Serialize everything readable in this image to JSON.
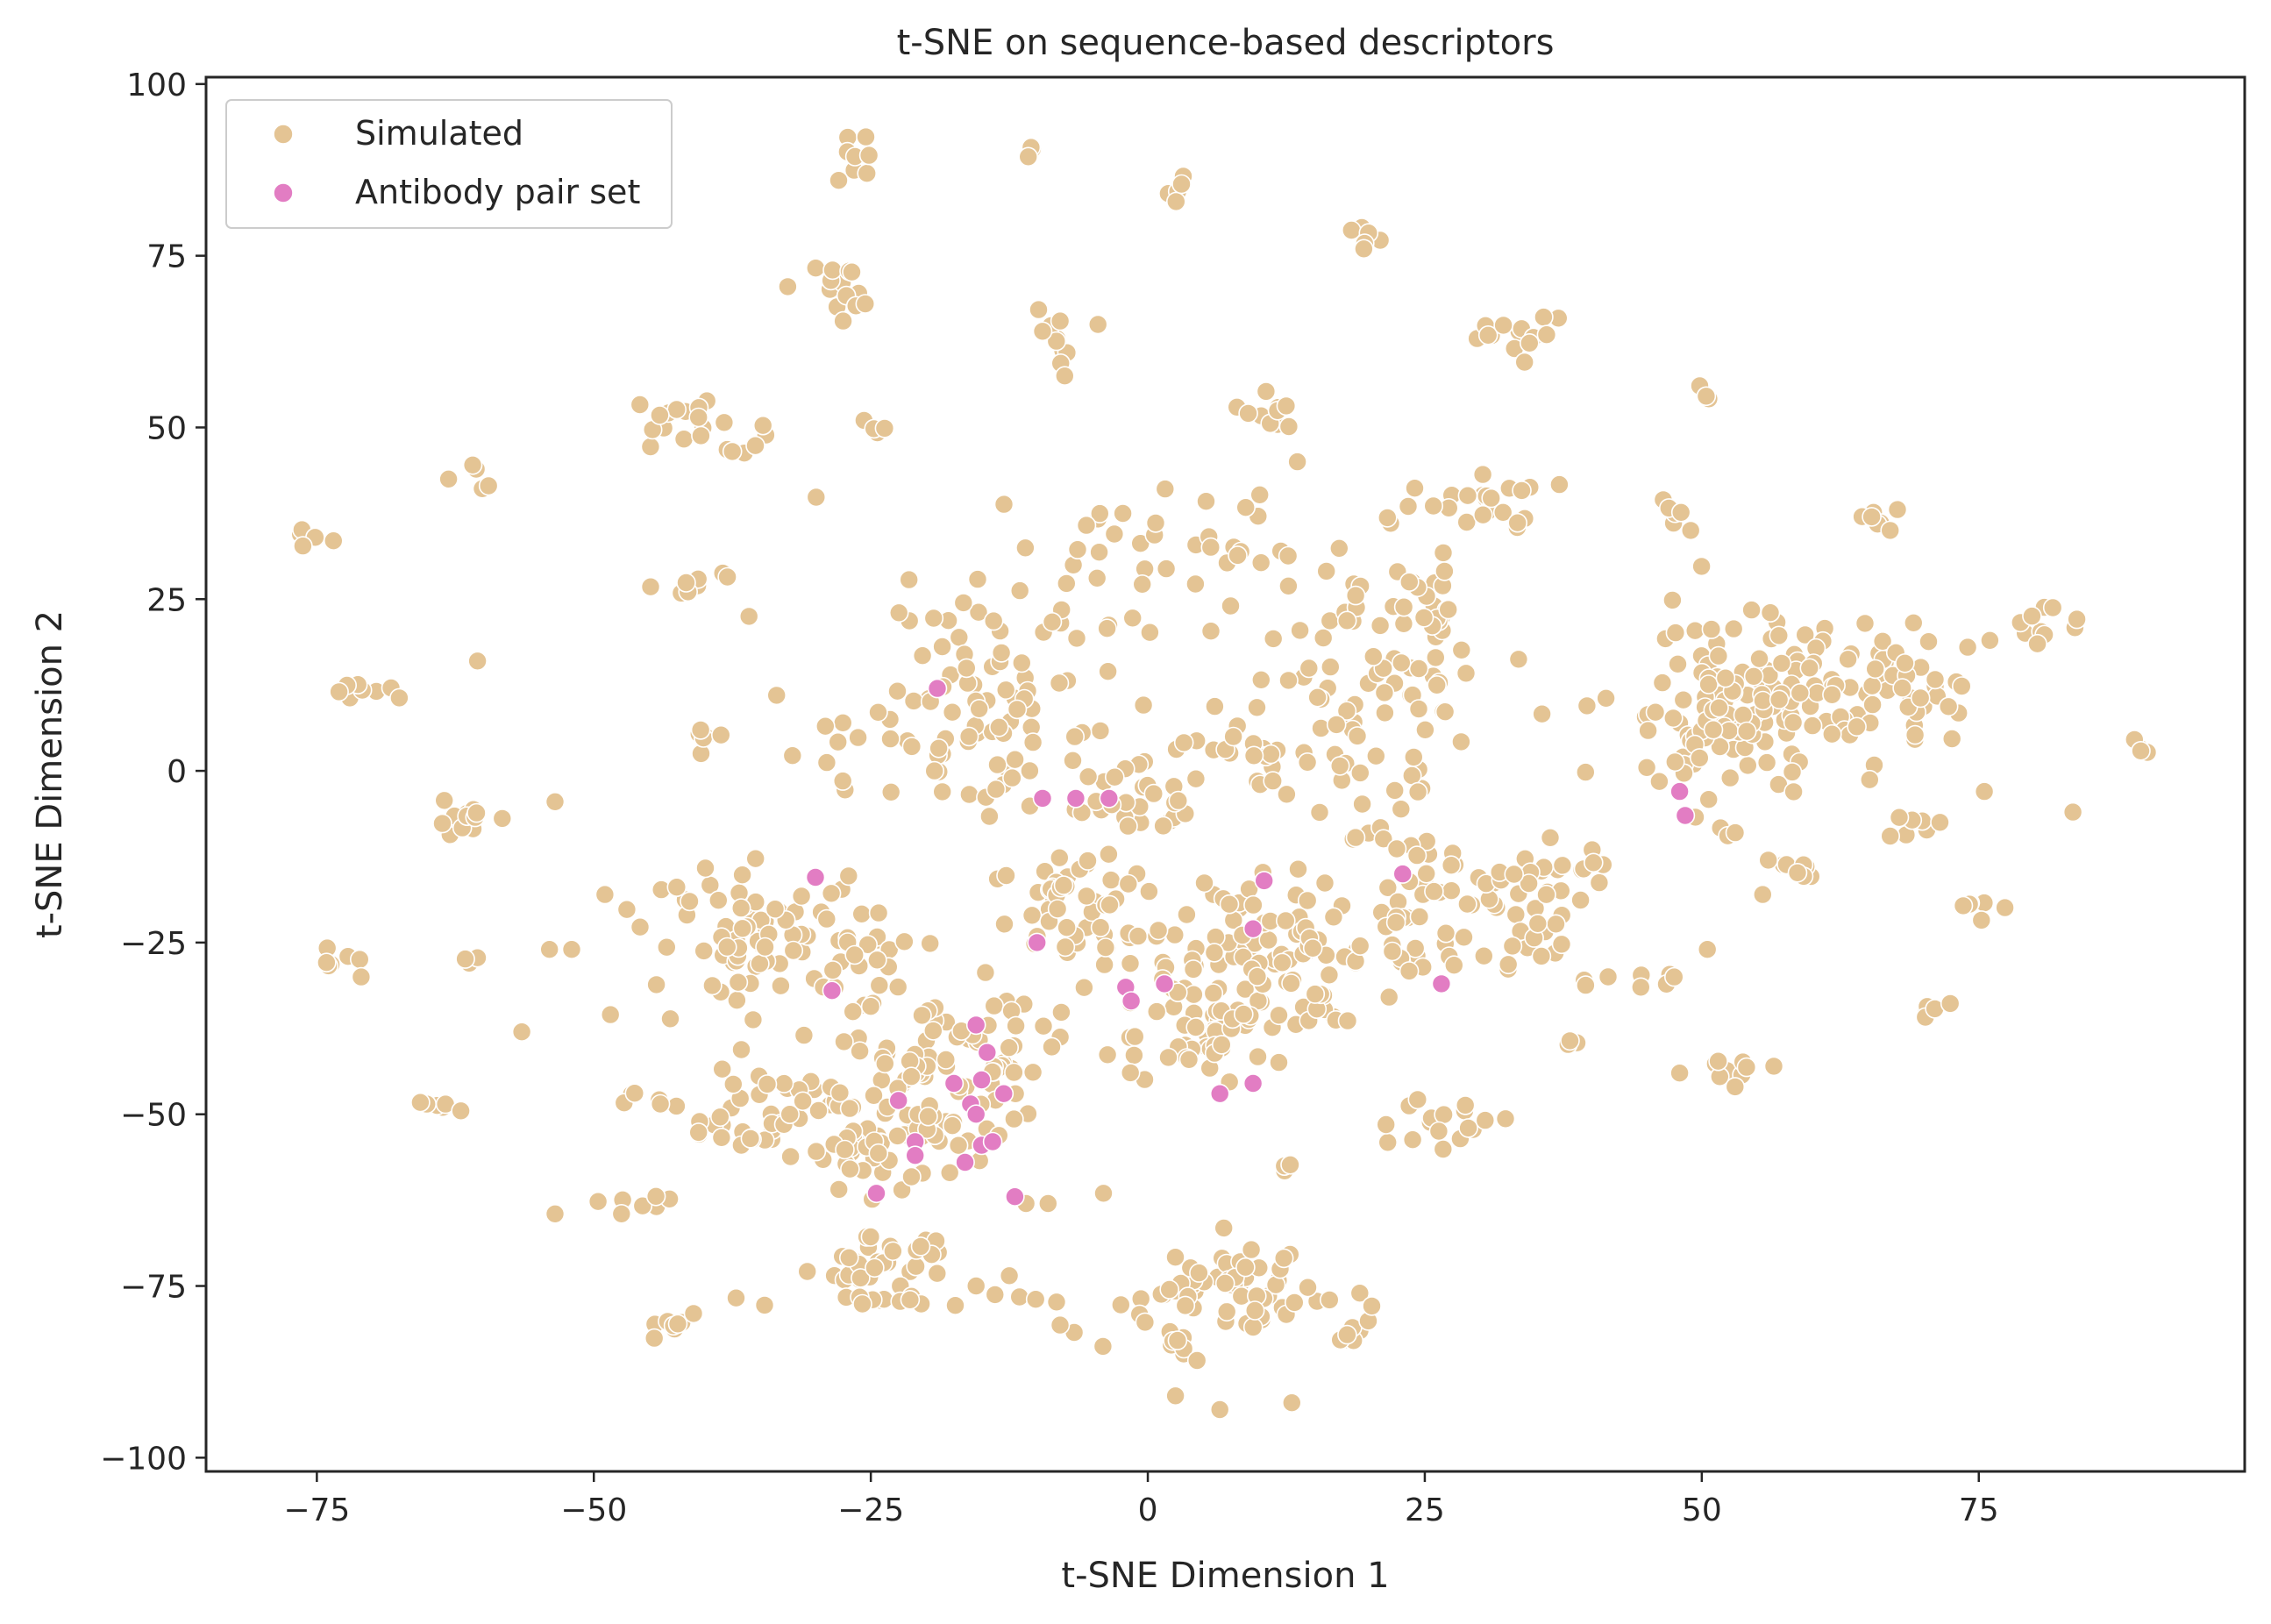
{
  "chart_data": {
    "type": "scatter",
    "title": "t-SNE on sequence-based descriptors",
    "xlabel": "t-SNE Dimension 1",
    "ylabel": "t-SNE Dimension 2",
    "xlim": [
      -85,
      99
    ],
    "ylim": [
      -102,
      101
    ],
    "xticks": [
      -75,
      -50,
      -25,
      0,
      25,
      50,
      75
    ],
    "yticks": [
      -100,
      -75,
      -50,
      -25,
      0,
      25,
      50,
      75,
      100
    ],
    "xtick_labels": [
      "−75",
      "−50",
      "−25",
      "0",
      "25",
      "50",
      "75"
    ],
    "ytick_labels": [
      "−100",
      "−75",
      "−50",
      "−25",
      "0",
      "25",
      "50",
      "75",
      "100"
    ],
    "grid": false,
    "legend": {
      "placement": "top-left",
      "entries": [
        "Simulated",
        "Antibody pair set"
      ]
    },
    "colors": {
      "Simulated": "#e4c494",
      "Antibody pair set": "#e27dc3"
    },
    "series": [
      {
        "name": "Simulated",
        "clusters": [
          {
            "cx": -26,
            "cy": 89,
            "sx": 1.5,
            "sy": 2,
            "n": 8
          },
          {
            "cx": -10.5,
            "cy": 90.5,
            "sx": 0.6,
            "sy": 0.8,
            "n": 3
          },
          {
            "cx": 2.5,
            "cy": 83,
            "sx": 0.7,
            "sy": 1.2,
            "n": 5
          },
          {
            "cx": 19,
            "cy": 78.5,
            "sx": 0.9,
            "sy": 1.2,
            "n": 6
          },
          {
            "cx": -28,
            "cy": 70,
            "sx": 1.8,
            "sy": 2,
            "n": 12
          },
          {
            "cx": -7.5,
            "cy": 63.5,
            "sx": 1.3,
            "sy": 2.5,
            "n": 8
          },
          {
            "cx": 33,
            "cy": 63,
            "sx": 2,
            "sy": 1.5,
            "n": 12
          },
          {
            "cx": 50.5,
            "cy": 55,
            "sx": 0.6,
            "sy": 0.6,
            "n": 3
          },
          {
            "cx": -41,
            "cy": 50.5,
            "sx": 2.8,
            "sy": 2,
            "n": 20
          },
          {
            "cx": -24.5,
            "cy": 50,
            "sx": 0.6,
            "sy": 0.8,
            "n": 4
          },
          {
            "cx": 11,
            "cy": 51,
            "sx": 1.6,
            "sy": 2,
            "n": 10
          },
          {
            "cx": -61,
            "cy": 43,
            "sx": 1,
            "sy": 1,
            "n": 4
          },
          {
            "cx": 30.5,
            "cy": 39,
            "sx": 2.5,
            "sy": 2.3,
            "n": 22
          },
          {
            "cx": 47.5,
            "cy": 37.5,
            "sx": 1,
            "sy": 1,
            "n": 5
          },
          {
            "cx": 66,
            "cy": 37.5,
            "sx": 0.9,
            "sy": 1,
            "n": 6
          },
          {
            "cx": -75.5,
            "cy": 34,
            "sx": 0.9,
            "sy": 0.7,
            "n": 4
          },
          {
            "cx": -40,
            "cy": 27,
            "sx": 1.5,
            "sy": 1.5,
            "n": 8
          },
          {
            "cx": -70,
            "cy": 12,
            "sx": 1.7,
            "sy": 1,
            "n": 8
          },
          {
            "cx": -40,
            "cy": 5,
            "sx": 1.6,
            "sy": 1.2,
            "n": 8
          },
          {
            "cx": -13,
            "cy": 14,
            "sx": 6,
            "sy": 7,
            "n": 50
          },
          {
            "cx": -22,
            "cy": 3,
            "sx": 5,
            "sy": 5,
            "n": 30
          },
          {
            "cx": 0,
            "cy": 30,
            "sx": 11,
            "sy": 6,
            "n": 55
          },
          {
            "cx": 20,
            "cy": 15,
            "sx": 6,
            "sy": 6,
            "n": 60
          },
          {
            "cx": 25,
            "cy": 24,
            "sx": 2,
            "sy": 3,
            "n": 14
          },
          {
            "cx": 52,
            "cy": 9,
            "sx": 5,
            "sy": 7,
            "n": 120
          },
          {
            "cx": 63,
            "cy": 12,
            "sx": 4,
            "sy": 5,
            "n": 60
          },
          {
            "cx": 70.5,
            "cy": 10,
            "sx": 1.5,
            "sy": 3,
            "n": 12
          },
          {
            "cx": 81.5,
            "cy": 21,
            "sx": 1.5,
            "sy": 1.5,
            "n": 10
          },
          {
            "cx": 89.5,
            "cy": 3.5,
            "sx": 0.6,
            "sy": 0.5,
            "n": 4
          },
          {
            "cx": -61,
            "cy": -7,
            "sx": 1.8,
            "sy": 1.8,
            "n": 14
          },
          {
            "cx": -3,
            "cy": -5,
            "sx": 5,
            "sy": 3,
            "n": 30
          },
          {
            "cx": 10,
            "cy": 1,
            "sx": 7,
            "sy": 3,
            "n": 35
          },
          {
            "cx": 20,
            "cy": -9,
            "sx": 3,
            "sy": 6,
            "n": 20
          },
          {
            "cx": 29,
            "cy": -18,
            "sx": 5,
            "sy": 3,
            "n": 35
          },
          {
            "cx": 36,
            "cy": -16,
            "sx": 3,
            "sy": 3,
            "n": 18
          },
          {
            "cx": -35,
            "cy": -24,
            "sx": 5,
            "sy": 5,
            "n": 70
          },
          {
            "cx": -26,
            "cy": -26,
            "sx": 3,
            "sy": 3,
            "n": 20
          },
          {
            "cx": -6,
            "cy": -20,
            "sx": 4,
            "sy": 5,
            "n": 45
          },
          {
            "cx": 7,
            "cy": -25,
            "sx": 5,
            "sy": 6,
            "n": 70
          },
          {
            "cx": 5,
            "cy": -38,
            "sx": 4,
            "sy": 4,
            "n": 40
          },
          {
            "cx": 15,
            "cy": -30,
            "sx": 3,
            "sy": 5,
            "n": 30
          },
          {
            "cx": 23,
            "cy": -26,
            "sx": 3,
            "sy": 3,
            "n": 20
          },
          {
            "cx": 35,
            "cy": -27,
            "sx": 3,
            "sy": 3,
            "n": 14
          },
          {
            "cx": -14,
            "cy": -42,
            "sx": 4,
            "sy": 6,
            "n": 45
          },
          {
            "cx": -22,
            "cy": -42,
            "sx": 3,
            "sy": 4,
            "n": 25
          },
          {
            "cx": -33,
            "cy": -50,
            "sx": 5,
            "sy": 3.5,
            "n": 55
          },
          {
            "cx": -25,
            "cy": -55,
            "sx": 3,
            "sy": 3,
            "n": 25
          },
          {
            "cx": -18,
            "cy": -52,
            "sx": 3,
            "sy": 4,
            "n": 20
          },
          {
            "cx": -24,
            "cy": -72,
            "sx": 3,
            "sy": 2,
            "n": 30
          },
          {
            "cx": -22,
            "cy": -77,
            "sx": 6,
            "sy": 0.4,
            "n": 20
          },
          {
            "cx": 8,
            "cy": -75,
            "sx": 4,
            "sy": 3,
            "n": 50
          },
          {
            "cx": 1,
            "cy": -83,
            "sx": 3,
            "sy": 3,
            "n": 18
          },
          {
            "cx": 19,
            "cy": -82,
            "sx": 1.2,
            "sy": 3,
            "n": 10
          },
          {
            "cx": -43.5,
            "cy": -81,
            "sx": 1.2,
            "sy": 0.8,
            "n": 8
          },
          {
            "cx": -73,
            "cy": -27.5,
            "sx": 1.2,
            "sy": 1,
            "n": 6
          },
          {
            "cx": -61,
            "cy": -27.5,
            "sx": 0.8,
            "sy": 0.5,
            "n": 3
          },
          {
            "cx": -64.5,
            "cy": -48.5,
            "sx": 1,
            "sy": 0.6,
            "n": 5
          },
          {
            "cx": -46.5,
            "cy": -47.5,
            "sx": 0.7,
            "sy": 0.6,
            "n": 3
          },
          {
            "cx": -45,
            "cy": -63,
            "sx": 2,
            "sy": 1,
            "n": 6
          },
          {
            "cx": 27,
            "cy": -51,
            "sx": 2.5,
            "sy": 1.8,
            "n": 16
          },
          {
            "cx": 52.5,
            "cy": -43.5,
            "sx": 1.3,
            "sy": 1.5,
            "n": 8
          },
          {
            "cx": 58.5,
            "cy": -14.5,
            "sx": 1.3,
            "sy": 1.2,
            "n": 7
          },
          {
            "cx": 70.5,
            "cy": -35,
            "sx": 1,
            "sy": 0.8,
            "n": 5
          },
          {
            "cx": 74.5,
            "cy": -20,
            "sx": 0.8,
            "sy": 1,
            "n": 6
          },
          {
            "cx": 70,
            "cy": -8,
            "sx": 1.2,
            "sy": 1.2,
            "n": 5
          },
          {
            "cx": 46,
            "cy": -31,
            "sx": 1.5,
            "sy": 0.8,
            "n": 4
          },
          {
            "cx": 38.5,
            "cy": -40,
            "sx": 0.5,
            "sy": 0.5,
            "n": 3
          },
          {
            "cx": 12.8,
            "cy": -58,
            "sx": 0.5,
            "sy": 0.5,
            "n": 3
          }
        ],
        "points": [
          [
            -73.5,
            33.5
          ],
          [
            -59.5,
            41.5
          ],
          [
            -60.5,
            16
          ],
          [
            -33.5,
            11
          ],
          [
            -36,
            22.5
          ],
          [
            -37.5,
            46.5
          ],
          [
            -53.5,
            -4.5
          ],
          [
            -52,
            -26
          ],
          [
            -54,
            -26
          ],
          [
            -49,
            -18
          ],
          [
            -56.5,
            -38
          ],
          [
            -48.5,
            -35.5
          ],
          [
            -44,
            -48.5
          ],
          [
            -62,
            -49.5
          ],
          [
            -71,
            -30
          ],
          [
            -53.5,
            -64.5
          ],
          [
            -47.5,
            -64.5
          ],
          [
            -41,
            -79
          ],
          [
            -32.5,
            70.5
          ],
          [
            -25.5,
            68
          ],
          [
            -27.5,
            65.5
          ],
          [
            -9.5,
            64
          ],
          [
            -4.5,
            65
          ],
          [
            -7.5,
            57.5
          ],
          [
            19.5,
            76
          ],
          [
            13.5,
            45
          ],
          [
            23.5,
            38.5
          ],
          [
            24,
            2
          ],
          [
            36,
            63.5
          ],
          [
            34,
            59.5
          ],
          [
            49,
            35
          ],
          [
            67,
            35
          ],
          [
            76,
            19
          ],
          [
            74,
            18
          ],
          [
            75.5,
            -3
          ],
          [
            83.5,
            -6
          ],
          [
            71.5,
            -7.5
          ],
          [
            67,
            -9.5
          ],
          [
            48,
            -44
          ],
          [
            53,
            -46
          ],
          [
            56.5,
            -43
          ],
          [
            44.5,
            -31.5
          ],
          [
            47.5,
            -30
          ],
          [
            21.5,
            -51.5
          ],
          [
            13,
            -92
          ],
          [
            6.5,
            -93
          ],
          [
            2.5,
            -91
          ],
          [
            -11,
            -63
          ],
          [
            -9,
            -63
          ],
          [
            -4,
            -61.5
          ],
          [
            -15.5,
            -75
          ],
          [
            -12.5,
            -73.5
          ],
          [
            56,
            -13
          ],
          [
            55.5,
            -18
          ],
          [
            50.5,
            -26
          ]
        ]
      },
      {
        "name": "Antibody pair set",
        "points": [
          [
            -19,
            12
          ],
          [
            -9.5,
            -4
          ],
          [
            -6.5,
            -4
          ],
          [
            -3.5,
            -4
          ],
          [
            -30,
            -15.5
          ],
          [
            -28.5,
            -32
          ],
          [
            -10,
            -25
          ],
          [
            -2,
            -31.5
          ],
          [
            -1.5,
            -33.5
          ],
          [
            1.5,
            -31
          ],
          [
            10.5,
            -16
          ],
          [
            9.5,
            -23
          ],
          [
            23,
            -15
          ],
          [
            26.5,
            -31
          ],
          [
            6.5,
            -47
          ],
          [
            9.5,
            -45.5
          ],
          [
            -15.5,
            -37
          ],
          [
            -14.5,
            -41
          ],
          [
            -17.5,
            -45.5
          ],
          [
            -15,
            -45
          ],
          [
            -13,
            -47
          ],
          [
            -16,
            -48.5
          ],
          [
            -15.5,
            -50
          ],
          [
            -22.5,
            -48
          ],
          [
            -21,
            -54
          ],
          [
            -21,
            -56
          ],
          [
            -16.5,
            -57
          ],
          [
            -15,
            -54.5
          ],
          [
            -14,
            -54
          ],
          [
            -24.5,
            -61.5
          ],
          [
            -12,
            -62
          ],
          [
            48,
            -3
          ],
          [
            48.5,
            -6.5
          ]
        ]
      }
    ]
  }
}
